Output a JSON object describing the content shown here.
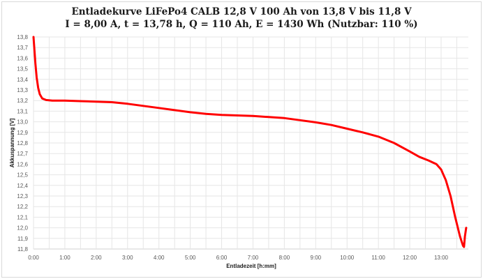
{
  "chart": {
    "title_line1": "Entladekurve LiFePo4 CALB 12,8 V 100 Ah von 13,8 V bis 11,8 V",
    "title_line2": "I = 8,00 A, t = 13,78 h, Q = 110 Ah, E = 1430 Wh (Nutzbar: 110 %)",
    "xlabel": "Entladezeit [h:mm]",
    "ylabel": "Akkuspannung [V]",
    "line_color": "#ff0000",
    "grid_color": "#e6e6e6"
  },
  "chart_data": {
    "type": "line",
    "title": "Entladekurve LiFePo4 CALB 12,8 V 100 Ah von 13,8 V bis 11,8 V — I = 8,00 A, t = 13,78 h, Q = 110 Ah, E = 1430 Wh (Nutzbar: 110 %)",
    "xlabel": "Entladezeit [h:mm]",
    "ylabel": "Akkuspannung [V]",
    "xlim": [
      0,
      13.87
    ],
    "ylim": [
      11.8,
      13.8
    ],
    "grid": true,
    "legend": "none",
    "x_tick_labels": [
      "0:00",
      "1:00",
      "2:00",
      "3:00",
      "4:00",
      "5:00",
      "6:00",
      "7:00",
      "8:00",
      "9:00",
      "10:00",
      "11:00",
      "12:00",
      "13:00"
    ],
    "y_tick_labels": [
      "11,8",
      "11,9",
      "12,0",
      "12,1",
      "12,2",
      "12,3",
      "12,4",
      "12,5",
      "12,6",
      "12,7",
      "12,8",
      "12,9",
      "13,0",
      "13,1",
      "13,2",
      "13,3",
      "13,4",
      "13,5",
      "13,6",
      "13,7",
      "13,8"
    ],
    "series": [
      {
        "name": "Akkuspannung",
        "x_hours": [
          0.0,
          0.03,
          0.06,
          0.1,
          0.15,
          0.2,
          0.28,
          0.4,
          0.6,
          1.0,
          1.5,
          2.0,
          2.5,
          3.0,
          3.5,
          4.0,
          4.5,
          5.0,
          5.5,
          6.0,
          6.5,
          7.0,
          7.5,
          8.0,
          8.5,
          9.0,
          9.5,
          10.0,
          10.5,
          11.0,
          11.5,
          12.0,
          12.3,
          12.6,
          12.85,
          13.0,
          13.15,
          13.3,
          13.45,
          13.6,
          13.7,
          13.73,
          13.76,
          13.8
        ],
        "values": [
          13.8,
          13.68,
          13.55,
          13.42,
          13.32,
          13.26,
          13.22,
          13.205,
          13.2,
          13.2,
          13.195,
          13.19,
          13.185,
          13.17,
          13.15,
          13.13,
          13.11,
          13.09,
          13.075,
          13.065,
          13.06,
          13.055,
          13.045,
          13.035,
          13.015,
          12.995,
          12.97,
          12.935,
          12.9,
          12.86,
          12.8,
          12.72,
          12.67,
          12.635,
          12.6,
          12.55,
          12.45,
          12.3,
          12.1,
          11.92,
          11.83,
          11.82,
          11.92,
          12.0
        ]
      }
    ]
  }
}
